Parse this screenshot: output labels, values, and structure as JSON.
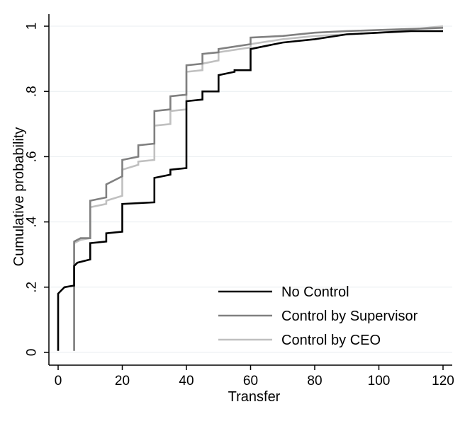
{
  "chart_data": {
    "type": "line",
    "subtype": "empirical cumulative distribution (step)",
    "title": "",
    "xlabel": "Transfer",
    "ylabel": "Cumulative probability",
    "xlim": [
      0,
      120
    ],
    "ylim": [
      0,
      1
    ],
    "x_ticks": [
      0,
      20,
      40,
      60,
      80,
      100,
      120
    ],
    "x_tick_labels": [
      "0",
      "20",
      "40",
      "60",
      "80",
      "100",
      "120"
    ],
    "y_ticks": [
      0,
      0.2,
      0.4,
      0.6,
      0.8,
      1
    ],
    "y_tick_labels": [
      "0",
      ".2",
      ".4",
      ".6",
      ".8",
      "1"
    ],
    "grid": "horizontal",
    "legend_position": "bottom-right",
    "series": [
      {
        "name": "No Control",
        "color": "#000000",
        "points": [
          [
            0,
            0.005
          ],
          [
            0,
            0.18
          ],
          [
            1,
            0.19
          ],
          [
            2,
            0.2
          ],
          [
            5,
            0.205
          ],
          [
            5,
            0.265
          ],
          [
            6,
            0.275
          ],
          [
            10,
            0.285
          ],
          [
            10,
            0.335
          ],
          [
            15,
            0.34
          ],
          [
            15,
            0.365
          ],
          [
            20,
            0.37
          ],
          [
            20,
            0.455
          ],
          [
            30,
            0.46
          ],
          [
            30,
            0.535
          ],
          [
            35,
            0.545
          ],
          [
            35,
            0.56
          ],
          [
            40,
            0.565
          ],
          [
            40,
            0.77
          ],
          [
            45,
            0.775
          ],
          [
            45,
            0.8
          ],
          [
            50,
            0.8
          ],
          [
            50,
            0.85
          ],
          [
            55,
            0.86
          ],
          [
            55,
            0.865
          ],
          [
            60,
            0.865
          ],
          [
            60,
            0.93
          ],
          [
            65,
            0.94
          ],
          [
            70,
            0.95
          ],
          [
            80,
            0.96
          ],
          [
            90,
            0.975
          ],
          [
            100,
            0.98
          ],
          [
            110,
            0.985
          ],
          [
            120,
            0.985
          ]
        ]
      },
      {
        "name": "Control by Supervisor",
        "color": "#808080",
        "points": [
          [
            5,
            0.005
          ],
          [
            5,
            0.34
          ],
          [
            7,
            0.35
          ],
          [
            10,
            0.35
          ],
          [
            10,
            0.465
          ],
          [
            15,
            0.475
          ],
          [
            15,
            0.515
          ],
          [
            20,
            0.54
          ],
          [
            20,
            0.59
          ],
          [
            25,
            0.6
          ],
          [
            25,
            0.635
          ],
          [
            30,
            0.64
          ],
          [
            30,
            0.74
          ],
          [
            35,
            0.745
          ],
          [
            35,
            0.785
          ],
          [
            40,
            0.79
          ],
          [
            40,
            0.88
          ],
          [
            45,
            0.885
          ],
          [
            45,
            0.915
          ],
          [
            50,
            0.92
          ],
          [
            50,
            0.93
          ],
          [
            60,
            0.945
          ],
          [
            60,
            0.965
          ],
          [
            70,
            0.97
          ],
          [
            80,
            0.98
          ],
          [
            90,
            0.985
          ],
          [
            120,
            0.995
          ]
        ]
      },
      {
        "name": "Control by CEO",
        "color": "#c0c0c0",
        "points": [
          [
            5,
            0.005
          ],
          [
            5,
            0.335
          ],
          [
            7,
            0.345
          ],
          [
            10,
            0.35
          ],
          [
            10,
            0.445
          ],
          [
            15,
            0.455
          ],
          [
            15,
            0.465
          ],
          [
            20,
            0.48
          ],
          [
            20,
            0.56
          ],
          [
            25,
            0.575
          ],
          [
            25,
            0.585
          ],
          [
            30,
            0.59
          ],
          [
            30,
            0.695
          ],
          [
            35,
            0.7
          ],
          [
            35,
            0.74
          ],
          [
            40,
            0.745
          ],
          [
            40,
            0.86
          ],
          [
            45,
            0.865
          ],
          [
            45,
            0.885
          ],
          [
            50,
            0.895
          ],
          [
            50,
            0.92
          ],
          [
            60,
            0.935
          ],
          [
            60,
            0.945
          ],
          [
            70,
            0.96
          ],
          [
            80,
            0.97
          ],
          [
            90,
            0.975
          ],
          [
            100,
            0.98
          ],
          [
            110,
            0.99
          ],
          [
            120,
            1.0
          ]
        ]
      }
    ]
  }
}
